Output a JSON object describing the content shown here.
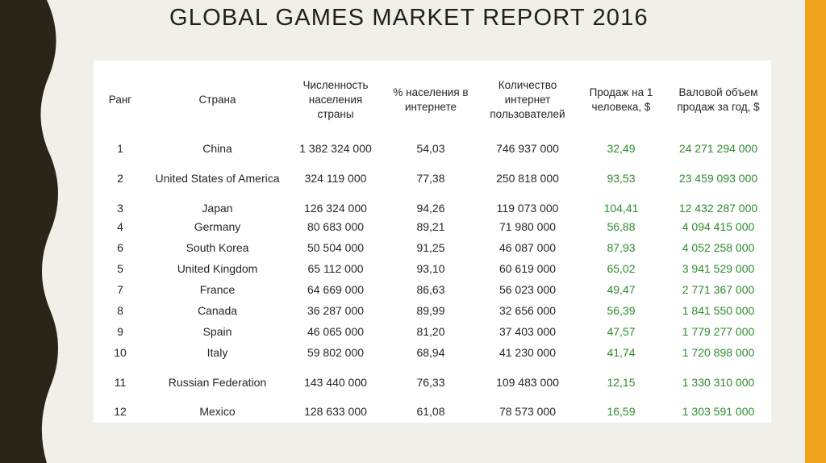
{
  "title": "GLOBAL GAMES MARKET REPORT 2016",
  "colors": {
    "left_band": "#2b2418",
    "right_band": "#f0a41e",
    "background": "#f1efe9",
    "sales_text": "#2e8b2e"
  },
  "table": {
    "headers": {
      "rank": "Ранг",
      "country": "Страна",
      "population": "Численность населения страны",
      "internet_pct": "% населения в интернете",
      "internet_users": "Количество интернет пользователей",
      "sales_per_capita": "Продаж на 1 человека, $",
      "gross_sales": "Валовой объем продаж за год, $"
    },
    "rows": [
      {
        "rank": "1",
        "country": "China",
        "population": "1 382 324 000",
        "internet_pct": "54,03",
        "internet_users": "746 937 000",
        "sales_per_capita": "32,49",
        "gross_sales": "24 271 294 000"
      },
      {
        "rank": "2",
        "country": "United States of America",
        "population": "324 119 000",
        "internet_pct": "77,38",
        "internet_users": "250 818 000",
        "sales_per_capita": "93,53",
        "gross_sales": "23 459 093 000"
      },
      {
        "rank": "3",
        "country": "Japan",
        "population": "126 324 000",
        "internet_pct": "94,26",
        "internet_users": "119 073 000",
        "sales_per_capita": "104,41",
        "gross_sales": "12 432 287 000"
      },
      {
        "rank": "4",
        "country": "Germany",
        "population": "80 683 000",
        "internet_pct": "89,21",
        "internet_users": "71 980 000",
        "sales_per_capita": "56,88",
        "gross_sales": "4 094 415 000"
      },
      {
        "rank": "6",
        "country": "South Korea",
        "population": "50 504 000",
        "internet_pct": "91,25",
        "internet_users": "46 087 000",
        "sales_per_capita": "87,93",
        "gross_sales": "4 052 258 000"
      },
      {
        "rank": "5",
        "country": "United Kingdom",
        "population": "65 112 000",
        "internet_pct": "93,10",
        "internet_users": "60 619 000",
        "sales_per_capita": "65,02",
        "gross_sales": "3 941 529 000"
      },
      {
        "rank": "7",
        "country": "France",
        "population": "64 669 000",
        "internet_pct": "86,63",
        "internet_users": "56 023 000",
        "sales_per_capita": "49,47",
        "gross_sales": "2 771 367 000"
      },
      {
        "rank": "8",
        "country": "Canada",
        "population": "36 287 000",
        "internet_pct": "89,99",
        "internet_users": "32 656 000",
        "sales_per_capita": "56,39",
        "gross_sales": "1 841 550 000"
      },
      {
        "rank": "9",
        "country": "Spain",
        "population": "46 065 000",
        "internet_pct": "81,20",
        "internet_users": "37 403 000",
        "sales_per_capita": "47,57",
        "gross_sales": "1 779 277 000"
      },
      {
        "rank": "10",
        "country": "Italy",
        "population": "59 802 000",
        "internet_pct": "68,94",
        "internet_users": "41 230 000",
        "sales_per_capita": "41,74",
        "gross_sales": "1 720 898 000"
      },
      {
        "rank": "11",
        "country": "Russian Federation",
        "population": "143 440 000",
        "internet_pct": "76,33",
        "internet_users": "109 483 000",
        "sales_per_capita": "12,15",
        "gross_sales": "1 330 310 000"
      },
      {
        "rank": "12",
        "country": "Mexico",
        "population": "128 633 000",
        "internet_pct": "61,08",
        "internet_users": "78 573 000",
        "sales_per_capita": "16,59",
        "gross_sales": "1 303 591 000"
      }
    ]
  }
}
